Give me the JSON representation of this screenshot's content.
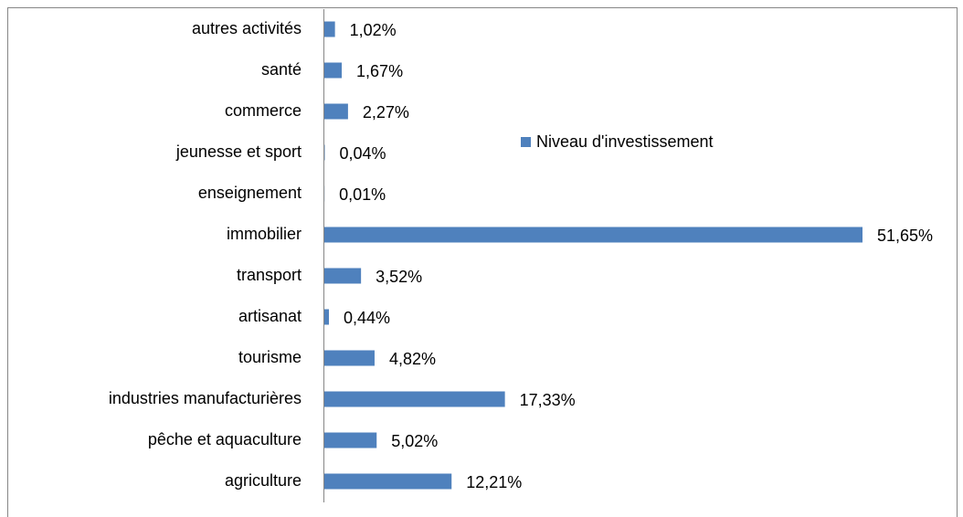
{
  "chart_data": {
    "type": "bar",
    "orientation": "horizontal",
    "categories": [
      "autres activités",
      "santé",
      "commerce",
      "jeunesse et sport",
      "enseignement",
      "immobilier",
      "transport",
      "artisanat",
      "tourisme",
      "industries manufacturières",
      "pêche et aquaculture",
      "agriculture"
    ],
    "series": [
      {
        "name": "Niveau d'investissement",
        "color": "#4f81bd",
        "values": [
          1.02,
          1.67,
          2.27,
          0.04,
          0.01,
          51.65,
          3.52,
          0.44,
          4.82,
          17.33,
          5.02,
          12.21
        ],
        "value_labels": [
          "1,02%",
          "1,67%",
          "2,27%",
          "0,04%",
          "0,01%",
          "51,65%",
          "3,52%",
          "0,44%",
          "4,82%",
          "17,33%",
          "5,02%",
          "12,21%"
        ]
      }
    ],
    "legend": "upper center"
  }
}
